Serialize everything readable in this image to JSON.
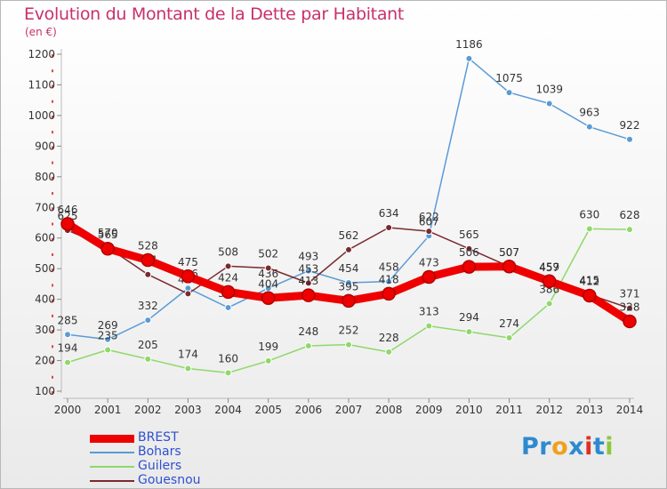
{
  "chart_data": {
    "type": "line",
    "title": "Evolution du Montant de la Dette par Habitant",
    "subtitle": "(en €)",
    "x": [
      2000,
      2001,
      2002,
      2003,
      2004,
      2005,
      2006,
      2007,
      2008,
      2009,
      2010,
      2011,
      2012,
      2013,
      2014
    ],
    "x_tick_labels": [
      "2000",
      "2001",
      "2002",
      "2003",
      "2004",
      "2005",
      "2006",
      "2007",
      "2008",
      "2009",
      "2010",
      "2011",
      "2012",
      "2013",
      "2014"
    ],
    "ylim": [
      100,
      1200
    ],
    "y_ticks": [
      100,
      200,
      300,
      400,
      500,
      600,
      700,
      800,
      900,
      1000,
      1100,
      1200
    ],
    "legend_position": "bottom-left",
    "series": [
      {
        "name": "BREST",
        "color": "#ee0000",
        "values": [
          646,
          565,
          528,
          475,
          424,
          404,
          413,
          395,
          418,
          473,
          506,
          507,
          459,
          412,
          328
        ]
      },
      {
        "name": "Bohars",
        "color": "#5a9bd5",
        "values": [
          285,
          269,
          332,
          436,
          373,
          436,
          493,
          454,
          458,
          607,
          1186,
          1075,
          1039,
          963,
          922
        ]
      },
      {
        "name": "Guilers",
        "color": "#8fd86a",
        "values": [
          194,
          235,
          205,
          174,
          160,
          199,
          248,
          252,
          228,
          313,
          294,
          274,
          386,
          630,
          628
        ]
      },
      {
        "name": "Gouesnou",
        "color": "#7a2a30",
        "values": [
          625,
          570,
          481,
          418,
          508,
          502,
          453,
          562,
          634,
          622,
          565,
          507,
          457,
          415,
          371
        ]
      }
    ]
  },
  "logo": {
    "letters": [
      "P",
      "r",
      "o",
      "x",
      "i",
      "t",
      "i"
    ],
    "colors": [
      "#2d8ad0",
      "#2d8ad0",
      "#f0a020",
      "#2d8ad0",
      "#e03020",
      "#2d8ad0",
      "#8cc83c"
    ]
  }
}
